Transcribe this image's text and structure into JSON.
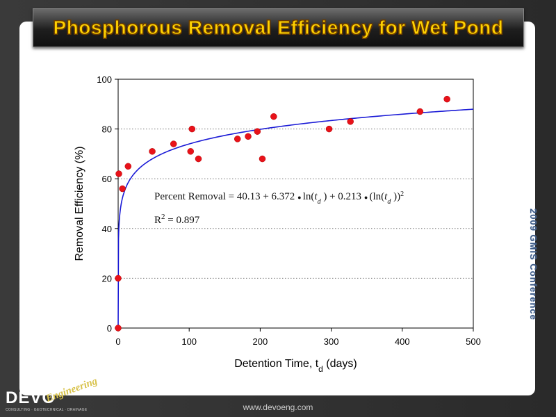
{
  "header": {
    "title": "Phosphorous  Removal  Efficiency for Wet Pond"
  },
  "side_text": "2009 GMIS Conference",
  "footer": {
    "url": "www.devoeng.com"
  },
  "logo": {
    "main": "DEVO",
    "script": "Engineering",
    "tagline": "CONSULTING · GEOTECHNICAL · DRAINAGE"
  },
  "colors": {
    "points": "#e8121a",
    "curve": "#1a1ad6",
    "title": "#ffd200",
    "side_text": "#3c5a86"
  },
  "chart_data": {
    "type": "scatter",
    "xlabel": "Detention Time, t",
    "xlabel_sub": "d",
    "xlabel_suffix": " (days)",
    "ylabel": "Removal Efficiency (%)",
    "xlim": [
      0,
      500
    ],
    "ylim": [
      0,
      100
    ],
    "xticks": [
      0,
      100,
      200,
      300,
      400,
      500
    ],
    "yticks": [
      0,
      20,
      40,
      60,
      80,
      100
    ],
    "grid": "horizontal dotted",
    "points": [
      {
        "x": 0,
        "y": 0
      },
      {
        "x": 0,
        "y": 20
      },
      {
        "x": 1,
        "y": 62
      },
      {
        "x": 6,
        "y": 56
      },
      {
        "x": 14,
        "y": 65
      },
      {
        "x": 48,
        "y": 71
      },
      {
        "x": 78,
        "y": 74
      },
      {
        "x": 102,
        "y": 71
      },
      {
        "x": 104,
        "y": 80
      },
      {
        "x": 113,
        "y": 68
      },
      {
        "x": 168,
        "y": 76
      },
      {
        "x": 183,
        "y": 77
      },
      {
        "x": 196,
        "y": 79
      },
      {
        "x": 203,
        "y": 68
      },
      {
        "x": 219,
        "y": 85
      },
      {
        "x": 297,
        "y": 80
      },
      {
        "x": 327,
        "y": 83
      },
      {
        "x": 425,
        "y": 87
      },
      {
        "x": 463,
        "y": 92
      }
    ],
    "fit": {
      "equation_prefix": "Percent Removal = 40.13 + 6.372",
      "equation_ln1": "ln(",
      "t": "t",
      "t_sub": "d",
      "close": ")",
      "equation_mid": " + 0.213",
      "equation_ln2": "(ln(",
      "close2": "))",
      "exponent": "2",
      "r2_label": "R",
      "r2_sup": "2",
      "r2_value": " = 0.897",
      "coefficients": [
        40.13,
        6.372,
        0.213
      ]
    }
  }
}
